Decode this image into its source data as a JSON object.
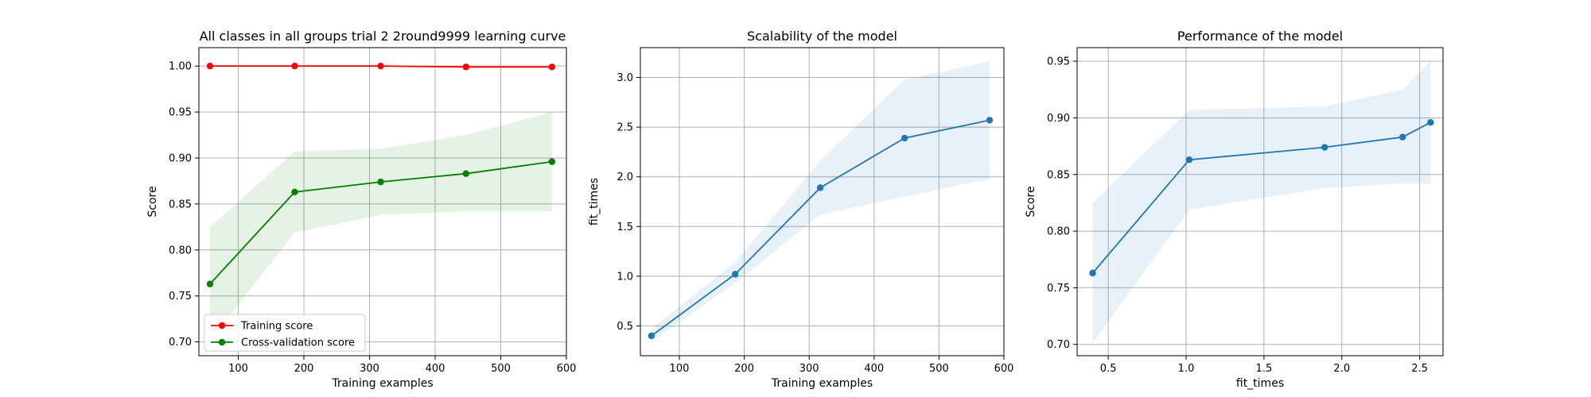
{
  "chart_data": [
    {
      "type": "line",
      "title": "All classes in all groups trial 2 2round9999 learning curve",
      "xlabel": "Training examples",
      "ylabel": "Score",
      "xlim": [
        40,
        600
      ],
      "ylim": [
        0.685,
        1.02
      ],
      "xticks": [
        100,
        200,
        300,
        400,
        500,
        600
      ],
      "yticks": [
        0.7,
        0.75,
        0.8,
        0.85,
        0.9,
        0.95,
        1.0
      ],
      "xtick_labels": [
        "100",
        "200",
        "300",
        "400",
        "500",
        "600"
      ],
      "ytick_labels": [
        "0.70",
        "0.75",
        "0.80",
        "0.85",
        "0.90",
        "0.95",
        "1.00"
      ],
      "grid": true,
      "legend": "lower-left",
      "x": [
        57,
        186,
        317,
        447,
        578
      ],
      "series": [
        {
          "name": "Training score",
          "color": "#ff0000",
          "values": [
            1.0,
            1.0,
            1.0,
            0.999,
            0.999
          ],
          "band_low": [
            1.0,
            1.0,
            1.0,
            0.998,
            0.998
          ],
          "band_high": [
            1.0,
            1.0,
            1.0,
            1.0,
            1.0
          ]
        },
        {
          "name": "Cross-validation score",
          "color": "#008000",
          "values": [
            0.763,
            0.863,
            0.874,
            0.883,
            0.896
          ],
          "band_low": [
            0.701,
            0.819,
            0.838,
            0.842,
            0.842
          ],
          "band_high": [
            0.825,
            0.907,
            0.91,
            0.925,
            0.95
          ]
        }
      ]
    },
    {
      "type": "line",
      "title": "Scalability of the model",
      "xlabel": "Training examples",
      "ylabel": "fit_times",
      "xlim": [
        40,
        600
      ],
      "ylim": [
        0.2,
        3.3
      ],
      "xticks": [
        100,
        200,
        300,
        400,
        500,
        600
      ],
      "yticks": [
        0.5,
        1.0,
        1.5,
        2.0,
        2.5,
        3.0
      ],
      "xtick_labels": [
        "100",
        "200",
        "300",
        "400",
        "500",
        "600"
      ],
      "ytick_labels": [
        "0.5",
        "1.0",
        "1.5",
        "2.0",
        "2.5",
        "3.0"
      ],
      "grid": true,
      "x": [
        57,
        186,
        317,
        447,
        578
      ],
      "series": [
        {
          "color": "#1f77b4",
          "values": [
            0.4,
            1.02,
            1.89,
            2.39,
            2.57
          ],
          "band_low": [
            0.34,
            0.93,
            1.62,
            1.8,
            1.98
          ],
          "band_high": [
            0.47,
            1.14,
            2.16,
            2.98,
            3.16
          ]
        }
      ]
    },
    {
      "type": "line",
      "title": "Performance of the model",
      "xlabel": "fit_times",
      "ylabel": "Score",
      "xlim": [
        0.3,
        2.65
      ],
      "ylim": [
        0.69,
        0.962
      ],
      "xticks": [
        0.5,
        1.0,
        1.5,
        2.0,
        2.5
      ],
      "yticks": [
        0.7,
        0.75,
        0.8,
        0.85,
        0.9,
        0.95
      ],
      "xtick_labels": [
        "0.5",
        "1.0",
        "1.5",
        "2.0",
        "2.5"
      ],
      "ytick_labels": [
        "0.70",
        "0.75",
        "0.80",
        "0.85",
        "0.90",
        "0.95"
      ],
      "grid": true,
      "x": [
        0.4,
        1.02,
        1.89,
        2.39,
        2.57
      ],
      "series": [
        {
          "color": "#1f77b4",
          "values": [
            0.763,
            0.863,
            0.874,
            0.883,
            0.896
          ],
          "band_low": [
            0.701,
            0.819,
            0.838,
            0.842,
            0.842
          ],
          "band_high": [
            0.825,
            0.907,
            0.91,
            0.925,
            0.95
          ]
        }
      ]
    }
  ]
}
